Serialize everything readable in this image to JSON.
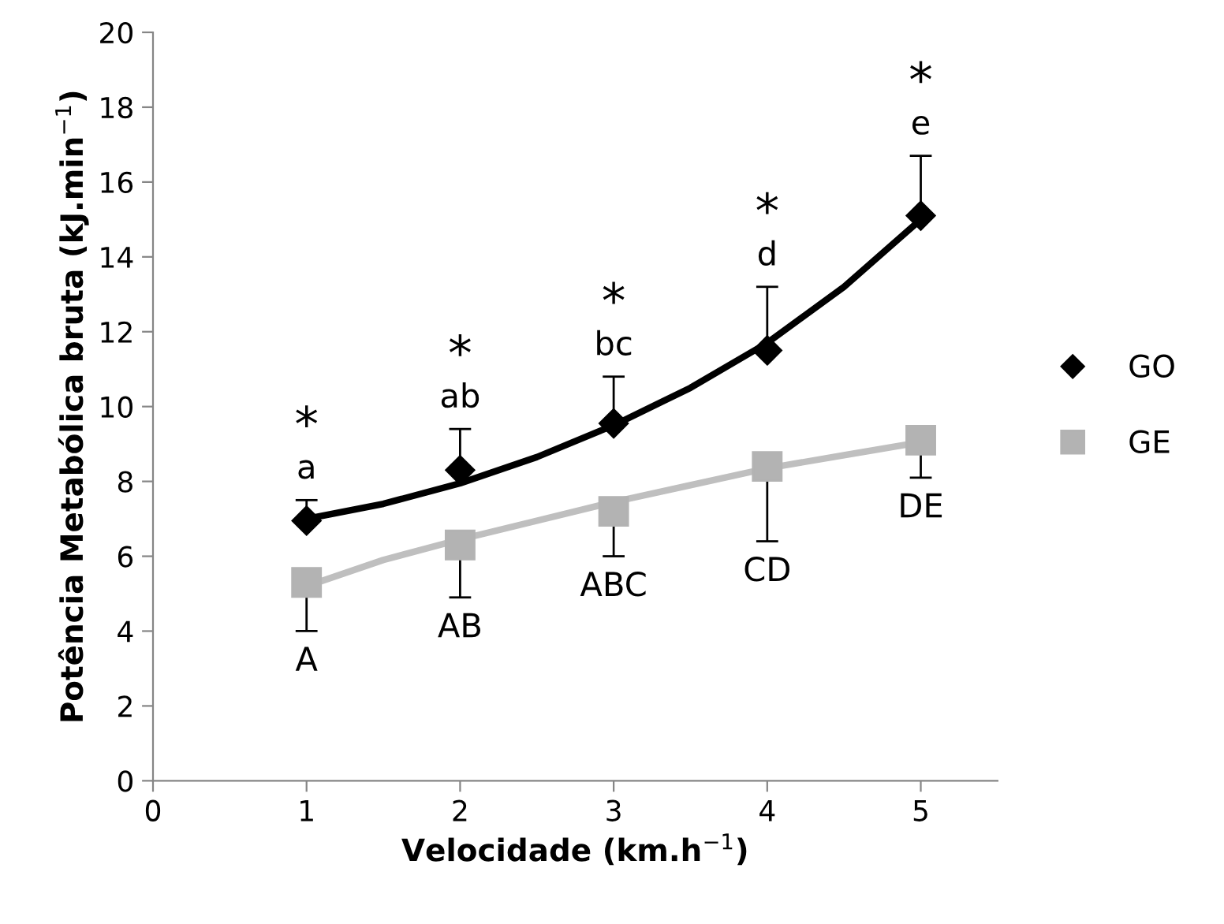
{
  "chart_data": {
    "type": "scatter",
    "xlabel": "Velocidade (km.h$^{−1}$)",
    "ylabel": "Potência Metabólica bruta (kJ.min$^{−1}$)",
    "x": [
      1,
      2,
      3,
      4,
      5
    ],
    "xlim": [
      0,
      5.5
    ],
    "xticks": [
      0,
      1,
      2,
      3,
      4,
      5
    ],
    "ylim": [
      0,
      20
    ],
    "yticks": [
      0,
      2,
      4,
      6,
      8,
      10,
      12,
      14,
      16,
      18,
      20
    ],
    "grid": false,
    "legend": "right",
    "series": [
      {
        "name": "GO",
        "color": "#000000",
        "marker": "diamond",
        "values": [
          6.95,
          8.3,
          9.55,
          11.5,
          15.1
        ],
        "errors": [
          [
            6.95,
            7.5
          ],
          [
            8.3,
            9.4
          ],
          [
            9.55,
            10.8
          ],
          [
            11.5,
            13.2
          ],
          [
            15.1,
            16.7
          ]
        ]
      },
      {
        "name": "GE",
        "color": "#b3b3b3",
        "marker": "square",
        "values": [
          5.3,
          6.3,
          7.2,
          8.4,
          9.1
        ],
        "errors": [
          [
            4.0,
            5.3
          ],
          [
            4.9,
            6.3
          ],
          [
            6.0,
            7.2
          ],
          [
            6.4,
            8.4
          ],
          [
            8.1,
            9.1
          ]
        ]
      },
      {
        "type": "line",
        "color": "#000000",
        "marker": "none",
        "line_style": "solid",
        "x": [
          1,
          1.5,
          2,
          2.5,
          3,
          3.5,
          4,
          4.5,
          5
        ],
        "values": [
          7.0,
          7.4,
          7.95,
          8.65,
          9.5,
          10.5,
          11.7,
          13.2,
          15.0
        ]
      },
      {
        "type": "line",
        "color": "#bfbfbf",
        "marker": "none",
        "line_style": "solid",
        "x": [
          1,
          1.5,
          2,
          2.5,
          3,
          3.5,
          4,
          4.5,
          5
        ],
        "values": [
          5.2,
          5.9,
          6.45,
          6.95,
          7.45,
          7.9,
          8.35,
          8.7,
          9.05
        ]
      }
    ],
    "annotations": [
      {
        "text": "a",
        "x": 1,
        "y": 6.95
      },
      {
        "text": "*",
        "x": 1,
        "y": 6.95
      },
      {
        "text": "ab",
        "x": 2,
        "y": 8.3
      },
      {
        "text": "*",
        "x": 2,
        "y": 8.3
      },
      {
        "text": "bc",
        "x": 3,
        "y": 9.55
      },
      {
        "text": "*",
        "x": 3,
        "y": 9.55
      },
      {
        "text": "d",
        "x": 4,
        "y": 11.5
      },
      {
        "text": "*",
        "x": 4,
        "y": 11.5
      },
      {
        "text": "e",
        "x": 5,
        "y": 15.1
      },
      {
        "text": "*",
        "x": 5,
        "y": 15.1
      },
      {
        "text": "A",
        "x": 1,
        "y": 5.3
      },
      {
        "text": "AB",
        "x": 2,
        "y": 6.3
      },
      {
        "text": "ABC",
        "x": 3,
        "y": 7.2
      },
      {
        "text": "CD",
        "x": 4,
        "y": 8.4
      },
      {
        "text": "DE",
        "x": 5,
        "y": 9.1
      }
    ]
  }
}
